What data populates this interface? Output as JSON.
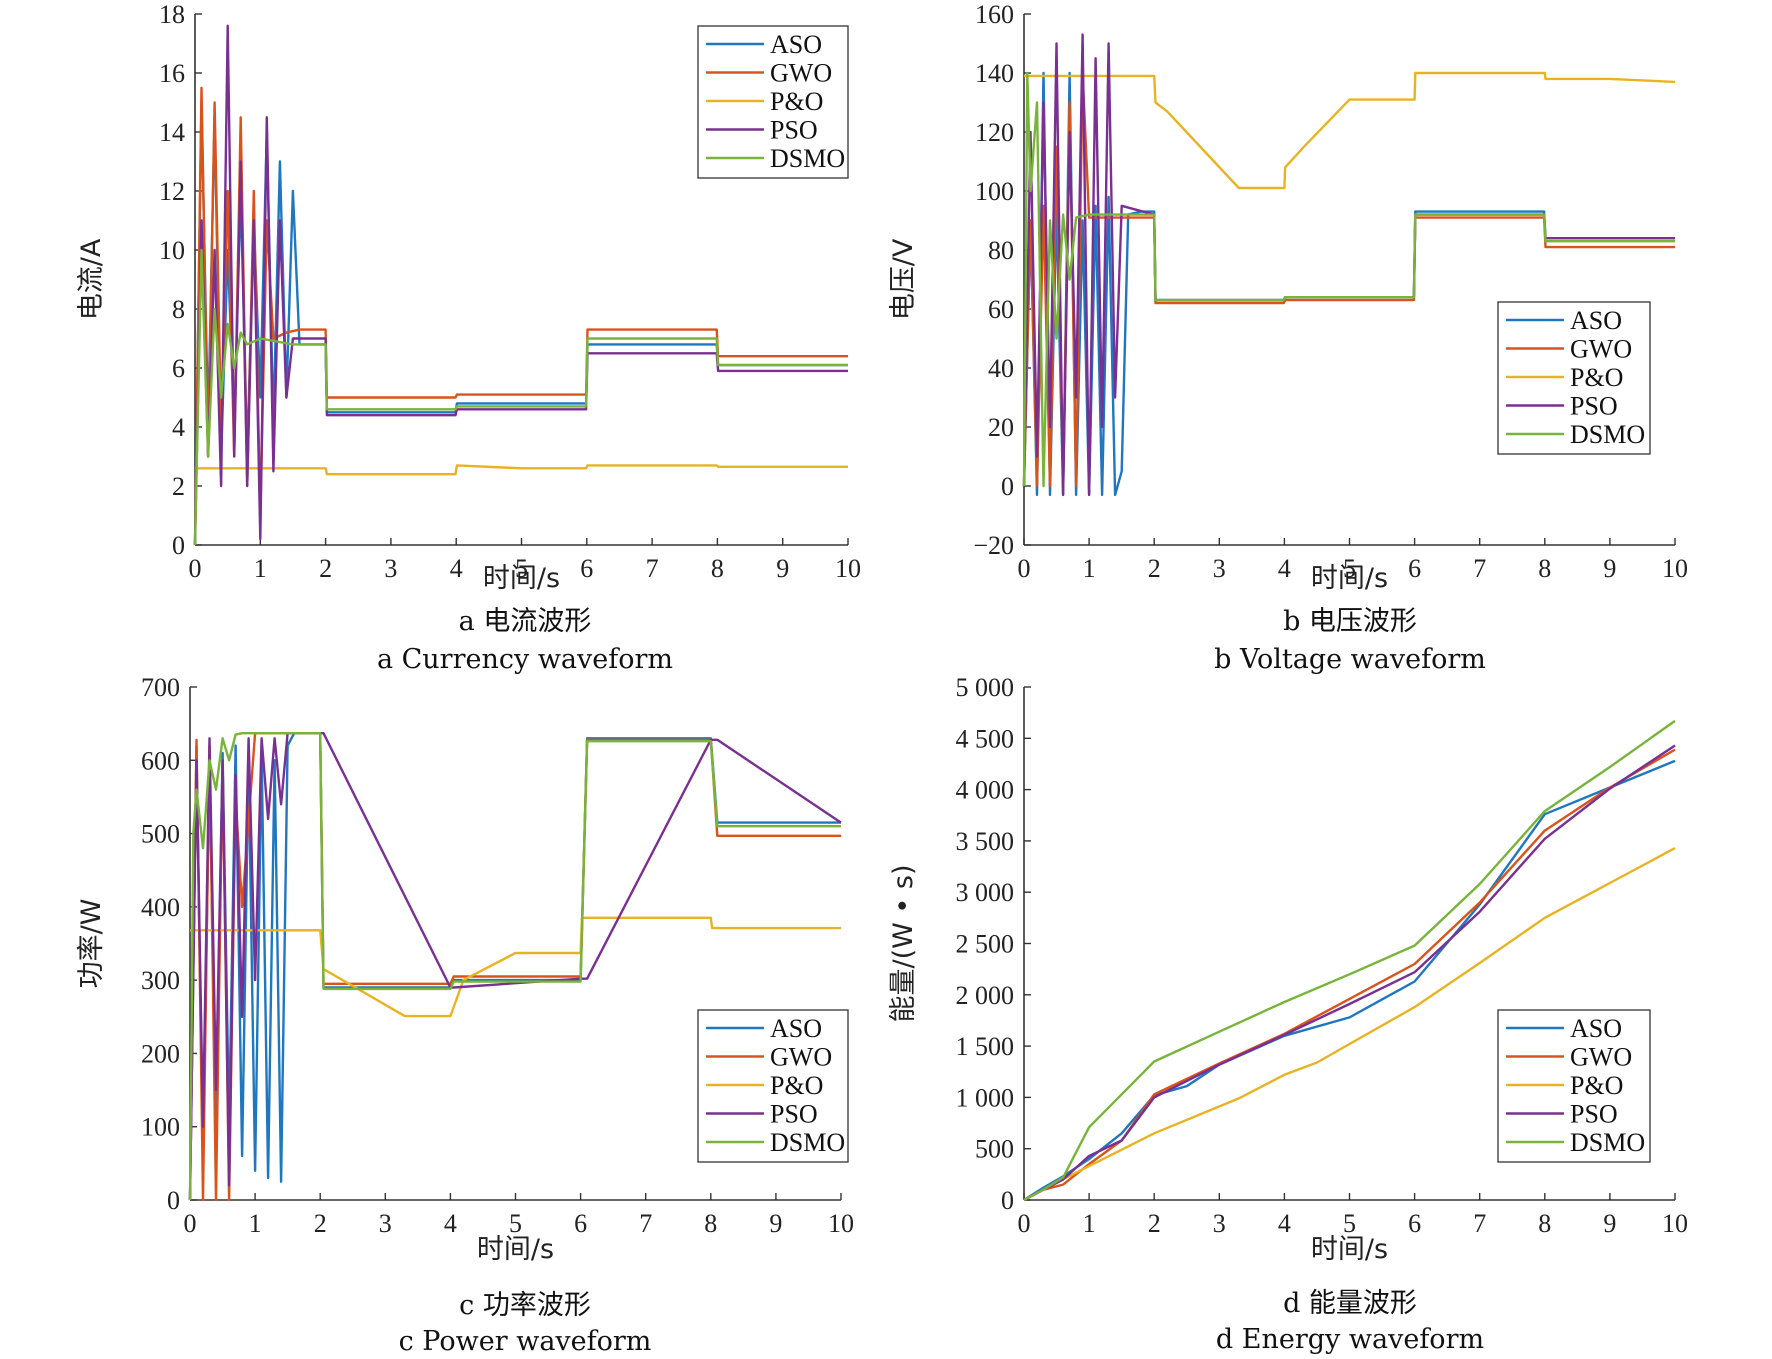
{
  "figure": {
    "legend_names": [
      "ASO",
      "GWO",
      "P&O",
      "PSO",
      "DSMO"
    ],
    "series_colors": {
      "ASO": "#1f77c0",
      "GWO": "#d9541a",
      "P&O": "#e8b323",
      "PSO": "#7a2f92",
      "DSMO": "#78b43a"
    }
  },
  "chart_data": [
    {
      "id": "current",
      "type": "line",
      "caption_cn": "a  电流波形",
      "caption_en": "a  Currency waveform",
      "xlabel": "时间/s",
      "ylabel": "电流/A",
      "xlim": [
        0,
        10
      ],
      "ylim": [
        0,
        18
      ],
      "xticks": [
        "0",
        "1",
        "2",
        "3",
        "4",
        "5",
        "6",
        "7",
        "8",
        "9",
        "10"
      ],
      "yticks": [
        "0",
        "2",
        "4",
        "6",
        "8",
        "10",
        "12",
        "14",
        "16",
        "18"
      ],
      "legend": "top-right",
      "series": [
        {
          "name": "ASO",
          "x": [
            0,
            0.1,
            0.2,
            0.3,
            0.4,
            0.5,
            0.6,
            0.7,
            0.8,
            0.9,
            1,
            1.1,
            1.2,
            1.3,
            1.4,
            1.5,
            1.6,
            1.7,
            2,
            2.02,
            3,
            3.99,
            4.01,
            5,
            5.99,
            6.01,
            7,
            7.99,
            8.01,
            9,
            10
          ],
          "y": [
            0,
            15,
            4,
            14.5,
            3,
            10,
            4,
            12,
            3,
            11,
            5,
            14,
            4,
            13,
            5,
            12,
            6.8,
            6.8,
            6.8,
            4.5,
            4.5,
            4.5,
            4.8,
            4.8,
            4.8,
            6.8,
            6.8,
            6.8,
            6.1,
            6.1,
            6.1
          ]
        },
        {
          "name": "GWO",
          "x": [
            0,
            0.1,
            0.2,
            0.3,
            0.4,
            0.5,
            0.6,
            0.7,
            0.8,
            0.9,
            1,
            1.1,
            1.2,
            1.4,
            1.6,
            2,
            2.02,
            3,
            3.99,
            4.01,
            5,
            5.99,
            6.01,
            7,
            7.99,
            8.01,
            9,
            10
          ],
          "y": [
            0,
            15.5,
            3,
            15,
            4,
            12,
            3,
            14.5,
            2,
            12,
            1,
            11,
            7,
            7.2,
            7.3,
            7.3,
            5,
            5,
            5,
            5.1,
            5.1,
            5.1,
            7.3,
            7.3,
            7.3,
            6.4,
            6.4,
            6.4
          ]
        },
        {
          "name": "P&O",
          "x": [
            0,
            0.1,
            0.5,
            1,
            1.5,
            2,
            2.02,
            3,
            3.99,
            4.01,
            5,
            5.99,
            6.01,
            7,
            7.99,
            8.01,
            9,
            10
          ],
          "y": [
            2.6,
            2.6,
            2.6,
            2.6,
            2.6,
            2.6,
            2.4,
            2.4,
            2.4,
            2.7,
            2.6,
            2.6,
            2.7,
            2.7,
            2.7,
            2.65,
            2.65,
            2.65
          ]
        },
        {
          "name": "PSO",
          "x": [
            0,
            0.1,
            0.2,
            0.3,
            0.4,
            0.5,
            0.6,
            0.7,
            0.8,
            0.9,
            1,
            1.1,
            1.2,
            1.3,
            1.4,
            1.5,
            2,
            2.02,
            3,
            3.99,
            4.01,
            5,
            5.99,
            6.01,
            7,
            7.99,
            8.01,
            9,
            10
          ],
          "y": [
            0,
            11,
            3,
            10,
            2,
            17.6,
            3,
            13,
            2,
            11,
            0.2,
            14.5,
            2.5,
            11,
            5,
            7,
            7,
            4.4,
            4.4,
            4.4,
            4.6,
            4.6,
            4.6,
            6.5,
            6.5,
            6.5,
            5.9,
            5.9,
            5.9
          ]
        },
        {
          "name": "DSMO",
          "x": [
            0,
            0.1,
            0.2,
            0.3,
            0.4,
            0.5,
            0.6,
            0.7,
            0.8,
            1,
            1.5,
            2,
            2.02,
            3,
            3.99,
            4.01,
            5,
            5.99,
            6.01,
            7,
            7.99,
            8.01,
            9,
            10
          ],
          "y": [
            0,
            10,
            3,
            8,
            5,
            7.5,
            6,
            7.2,
            6.8,
            7,
            6.8,
            6.8,
            4.6,
            4.6,
            4.6,
            4.7,
            4.7,
            4.7,
            7,
            7,
            7,
            6.1,
            6.1,
            6.1
          ]
        }
      ]
    },
    {
      "id": "voltage",
      "type": "line",
      "caption_cn": "b  电压波形",
      "caption_en": "b  Voltage waveform",
      "xlabel": "时间/s",
      "ylabel": "电压/V",
      "xlim": [
        0,
        10
      ],
      "ylim": [
        -20,
        160
      ],
      "xticks": [
        "0",
        "1",
        "2",
        "3",
        "4",
        "5",
        "6",
        "7",
        "8",
        "9",
        "10"
      ],
      "yticks": [
        "−20",
        "0",
        "20",
        "40",
        "60",
        "80",
        "100",
        "120",
        "140",
        "160"
      ],
      "legend": "middle-right",
      "series": [
        {
          "name": "ASO",
          "x": [
            0,
            0.1,
            0.2,
            0.3,
            0.4,
            0.5,
            0.6,
            0.7,
            0.8,
            0.9,
            1,
            1.1,
            1.2,
            1.3,
            1.4,
            1.5,
            1.6,
            1.8,
            2,
            2.02,
            3,
            3.99,
            4.01,
            5,
            5.99,
            6.01,
            7,
            7.99,
            8.01,
            9,
            10
          ],
          "y": [
            0,
            90,
            -3,
            140,
            -3,
            95,
            -3,
            140,
            -3,
            90,
            -3,
            95,
            -3,
            98,
            -3,
            5,
            92,
            93,
            93,
            63,
            63,
            63,
            64,
            64,
            64,
            93,
            93,
            93,
            84,
            84,
            84
          ]
        },
        {
          "name": "GWO",
          "x": [
            0,
            0.1,
            0.2,
            0.3,
            0.4,
            0.5,
            0.6,
            0.7,
            0.8,
            0.9,
            1,
            1.2,
            1.5,
            2,
            2.02,
            3,
            3.99,
            4.01,
            5,
            5.99,
            6.01,
            7,
            7.99,
            8.01,
            9,
            10
          ],
          "y": [
            0,
            90,
            0,
            95,
            0,
            115,
            0,
            130,
            0,
            140,
            91,
            91,
            91,
            91,
            62,
            62,
            62,
            63,
            63,
            63,
            91,
            91,
            91,
            81,
            81,
            81
          ]
        },
        {
          "name": "P&O",
          "x": [
            0,
            0.1,
            1,
            2,
            2.02,
            2.2,
            3.3,
            4,
            4.01,
            4.3,
            5,
            6,
            6.01,
            7,
            8,
            8.01,
            9,
            10
          ],
          "y": [
            139,
            139,
            139,
            139,
            130,
            127,
            101,
            101,
            108,
            115,
            131,
            131,
            140,
            140,
            140,
            138,
            138,
            137
          ]
        },
        {
          "name": "PSO",
          "x": [
            0,
            0.1,
            0.2,
            0.3,
            0.4,
            0.5,
            0.6,
            0.7,
            0.8,
            0.9,
            1,
            1.1,
            1.2,
            1.3,
            1.4,
            1.5,
            2,
            2.02,
            3,
            3.99,
            4.01,
            5,
            5.99,
            6.01,
            7,
            7.99,
            8.01,
            9,
            10
          ],
          "y": [
            0,
            120,
            10,
            130,
            20,
            150,
            -3,
            120,
            30,
            153,
            -3,
            145,
            20,
            150,
            30,
            95,
            92,
            63,
            63,
            63,
            64,
            64,
            64,
            92,
            92,
            92,
            84,
            84,
            84
          ]
        },
        {
          "name": "DSMO",
          "x": [
            0,
            0.05,
            0.1,
            0.2,
            0.3,
            0.4,
            0.5,
            0.6,
            0.7,
            0.8,
            1,
            1.5,
            2,
            2.02,
            3,
            3.99,
            4.01,
            5,
            5.99,
            6.01,
            7,
            7.99,
            8.01,
            9,
            10
          ],
          "y": [
            0,
            140,
            100,
            130,
            0,
            90,
            50,
            92,
            70,
            91,
            92,
            92,
            92,
            63,
            63,
            63,
            64,
            64,
            64,
            92,
            92,
            92,
            83,
            83,
            83
          ]
        }
      ]
    },
    {
      "id": "power",
      "type": "line",
      "caption_cn": "c  功率波形",
      "caption_en": "c  Power waveform",
      "xlabel": "时间/s",
      "ylabel": "功率/W",
      "xlim": [
        0,
        10
      ],
      "ylim": [
        0,
        700
      ],
      "xticks": [
        "0",
        "1",
        "2",
        "3",
        "4",
        "5",
        "6",
        "7",
        "8",
        "9",
        "10"
      ],
      "yticks": [
        "0",
        "100",
        "200",
        "300",
        "400",
        "500",
        "600",
        "700"
      ],
      "legend": "bottom-right",
      "series": [
        {
          "name": "ASO",
          "x": [
            0,
            0.1,
            0.2,
            0.3,
            0.4,
            0.5,
            0.6,
            0.7,
            0.8,
            0.9,
            1,
            1.1,
            1.2,
            1.3,
            1.4,
            1.5,
            1.6,
            2,
            2.05,
            4,
            4.05,
            6,
            6.1,
            8,
            8.1,
            10
          ],
          "y": [
            0,
            620,
            50,
            600,
            80,
            610,
            100,
            620,
            60,
            600,
            40,
            610,
            30,
            600,
            25,
            620,
            637,
            637,
            290,
            290,
            300,
            300,
            630,
            630,
            515,
            515
          ]
        },
        {
          "name": "GWO",
          "x": [
            0,
            0.1,
            0.2,
            0.3,
            0.4,
            0.5,
            0.6,
            0.7,
            0.8,
            1,
            1.5,
            2,
            2.05,
            4,
            4.05,
            6,
            6.1,
            8,
            8.1,
            10
          ],
          "y": [
            0,
            628,
            0,
            620,
            0,
            600,
            0,
            550,
            400,
            637,
            637,
            637,
            295,
            295,
            305,
            305,
            628,
            628,
            497,
            497
          ]
        },
        {
          "name": "P&O",
          "x": [
            0,
            0.1,
            1,
            2,
            2.05,
            3.3,
            4,
            4.2,
            5,
            6,
            6.02,
            8,
            8.02,
            10
          ],
          "y": [
            368,
            368,
            368,
            368,
            315,
            251,
            251,
            300,
            337,
            337,
            385,
            385,
            371,
            371
          ]
        },
        {
          "name": "PSO",
          "x": [
            0,
            0.1,
            0.2,
            0.3,
            0.4,
            0.5,
            0.6,
            0.7,
            0.8,
            0.9,
            1,
            1.1,
            1.2,
            1.3,
            1.4,
            1.5,
            2,
            2.05,
            4,
            4.05,
            6,
            6.1,
            8,
            8.1,
            10
          ],
          "y": [
            0,
            600,
            100,
            630,
            150,
            600,
            20,
            580,
            250,
            630,
            300,
            630,
            520,
            630,
            540,
            637,
            637,
            637,
            290,
            290,
            302,
            302,
            628,
            628,
            515
          ]
        },
        {
          "name": "DSMO",
          "x": [
            0,
            0.05,
            0.1,
            0.2,
            0.3,
            0.4,
            0.5,
            0.6,
            0.7,
            0.8,
            1,
            2,
            2.05,
            4,
            4.05,
            6,
            6.1,
            8,
            8.1,
            10
          ],
          "y": [
            0,
            500,
            560,
            480,
            600,
            560,
            630,
            600,
            635,
            637,
            637,
            637,
            288,
            288,
            298,
            298,
            626,
            626,
            510,
            510
          ]
        }
      ]
    },
    {
      "id": "energy",
      "type": "line",
      "caption_cn": "d  能量波形",
      "caption_en": "d  Energy waveform",
      "xlabel": "时间/s",
      "ylabel": "能量/(W • s)",
      "xlim": [
        0,
        10
      ],
      "ylim": [
        0,
        5000
      ],
      "xticks": [
        "0",
        "1",
        "2",
        "3",
        "4",
        "5",
        "6",
        "7",
        "8",
        "9",
        "10"
      ],
      "yticks": [
        "0",
        "500",
        "1 000",
        "1 500",
        "2 000",
        "2 500",
        "3 000",
        "3 500",
        "4 000",
        "4 500",
        "5 000"
      ],
      "legend": "bottom-right",
      "series": [
        {
          "name": "ASO",
          "x": [
            0,
            0.3,
            0.6,
            1,
            1.5,
            2,
            2.5,
            3,
            4,
            5,
            6,
            7,
            8,
            9,
            10
          ],
          "y": [
            0,
            120,
            230,
            400,
            650,
            1020,
            1110,
            1320,
            1600,
            1780,
            2130,
            2880,
            3760,
            4020,
            4280
          ]
        },
        {
          "name": "GWO",
          "x": [
            0,
            0.3,
            0.6,
            1,
            1.5,
            2,
            3,
            4,
            5,
            6,
            7,
            8,
            9,
            10
          ],
          "y": [
            0,
            100,
            150,
            350,
            580,
            1030,
            1330,
            1620,
            1960,
            2300,
            2900,
            3600,
            4020,
            4390
          ]
        },
        {
          "name": "P&O",
          "x": [
            0,
            0.5,
            1,
            2,
            3.3,
            4,
            4.5,
            5,
            6,
            7,
            8,
            9,
            10
          ],
          "y": [
            0,
            170,
            330,
            650,
            990,
            1220,
            1340,
            1520,
            1880,
            2310,
            2750,
            3090,
            3430
          ]
        },
        {
          "name": "PSO",
          "x": [
            0,
            0.3,
            0.6,
            1,
            1.5,
            2,
            3,
            4,
            5,
            6,
            7,
            8,
            9,
            10
          ],
          "y": [
            0,
            100,
            200,
            430,
            580,
            1000,
            1320,
            1610,
            1910,
            2220,
            2810,
            3520,
            4010,
            4430
          ]
        },
        {
          "name": "DSMO",
          "x": [
            0,
            0.3,
            0.6,
            1,
            1.5,
            2,
            3,
            4,
            5,
            6,
            7,
            8,
            9,
            10
          ],
          "y": [
            0,
            100,
            220,
            710,
            1030,
            1350,
            1640,
            1930,
            2200,
            2480,
            3080,
            3790,
            4220,
            4670
          ]
        }
      ]
    }
  ]
}
